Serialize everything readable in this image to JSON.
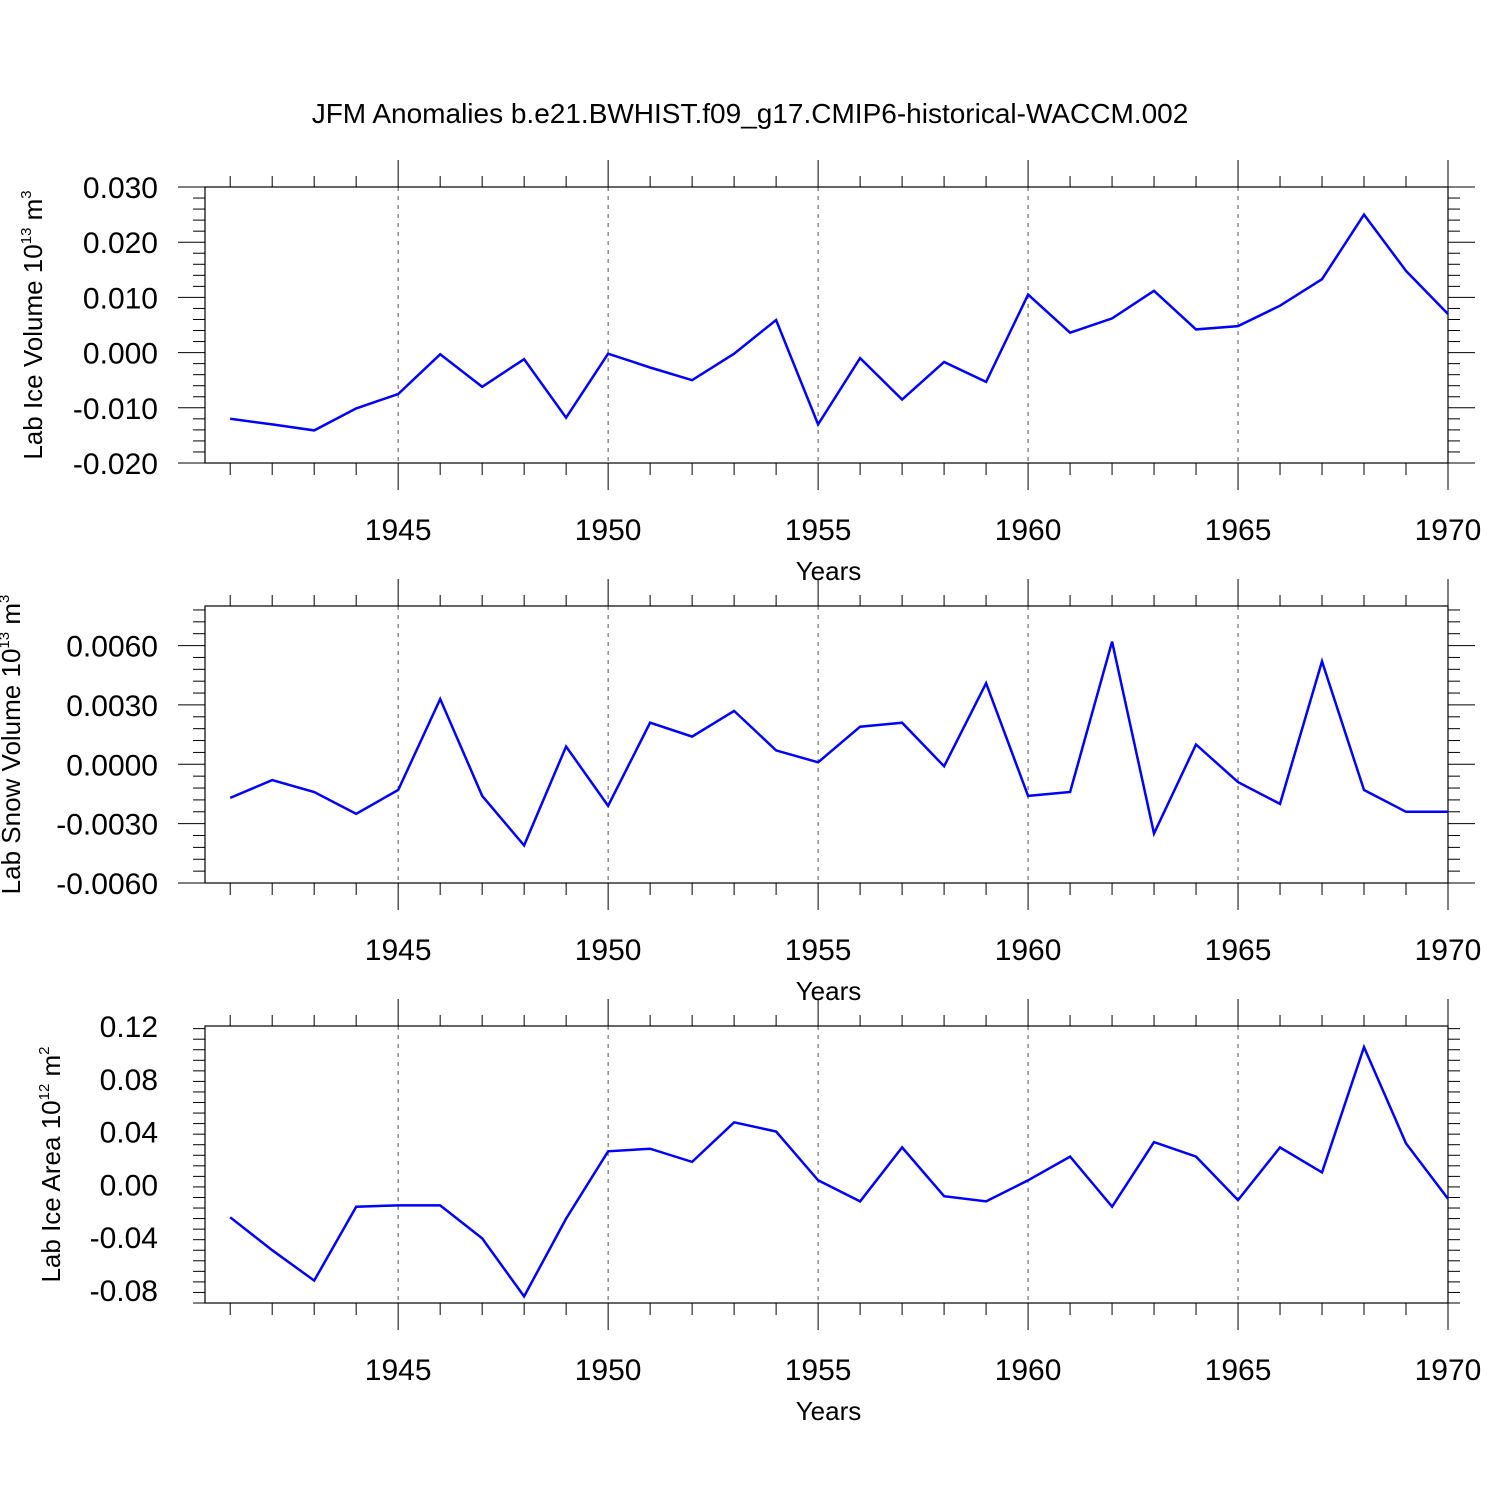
{
  "chart_data": [
    {
      "type": "line",
      "title": "JFM Anomalies b.e21.BWHIST.f09_g17.CMIP6-historical-WACCM.002",
      "ylabel": {
        "base": "Lab Ice Volume 10",
        "exp": "13",
        "unit": " m",
        "unit_exp": "3"
      },
      "xlabel": "Years",
      "x": [
        1941,
        1942,
        1943,
        1944,
        1945,
        1946,
        1947,
        1948,
        1949,
        1950,
        1951,
        1952,
        1953,
        1954,
        1955,
        1956,
        1957,
        1958,
        1959,
        1960,
        1961,
        1962,
        1963,
        1964,
        1965,
        1966,
        1967,
        1968,
        1969,
        1970
      ],
      "values": [
        -0.012,
        -0.013,
        -0.0141,
        -0.0101,
        -0.0075,
        -0.0003,
        -0.0062,
        -0.0012,
        -0.0118,
        -0.0002,
        -0.0027,
        -0.005,
        -0.0002,
        0.0059,
        -0.013,
        -0.001,
        -0.0085,
        -0.0017,
        -0.0053,
        0.0105,
        0.0036,
        0.0062,
        0.0112,
        0.0042,
        0.0048,
        0.0085,
        0.0133,
        0.025,
        0.0148,
        0.007
      ],
      "xlim": [
        1940.4,
        1970
      ],
      "ylim": [
        -0.02,
        0.03
      ],
      "yticks": [
        -0.02,
        -0.01,
        0.0,
        0.01,
        0.02,
        0.03
      ],
      "ytick_labels": [
        "-0.020",
        "-0.010",
        "0.000",
        "0.010",
        "0.020",
        "0.030"
      ],
      "xticks": [
        1945,
        1950,
        1955,
        1960,
        1965,
        1970
      ],
      "xtick_labels": [
        "1945",
        "1950",
        "1955",
        "1960",
        "1965",
        "1970"
      ],
      "line_color": "#0000ff"
    },
    {
      "type": "line",
      "ylabel": {
        "base": "Lab Snow Volume 10",
        "exp": "13",
        "unit": " m",
        "unit_exp": "3"
      },
      "xlabel": "Years",
      "x": [
        1941,
        1942,
        1943,
        1944,
        1945,
        1946,
        1947,
        1948,
        1949,
        1950,
        1951,
        1952,
        1953,
        1954,
        1955,
        1956,
        1957,
        1958,
        1959,
        1960,
        1961,
        1962,
        1963,
        1964,
        1965,
        1966,
        1967,
        1968,
        1969,
        1970
      ],
      "values": [
        -0.0017,
        -0.0008,
        -0.0014,
        -0.0025,
        -0.0013,
        0.0033,
        -0.0016,
        -0.0041,
        0.0009,
        -0.0021,
        0.0021,
        0.0014,
        0.0027,
        0.0007,
        0.0001,
        0.0019,
        0.0021,
        -0.0001,
        0.0041,
        -0.0016,
        -0.0014,
        0.0062,
        -0.0035,
        0.001,
        -0.0009,
        -0.002,
        0.0052,
        -0.0013,
        -0.0024,
        -0.0024
      ],
      "xlim": [
        1940.4,
        1970
      ],
      "ylim": [
        -0.006,
        0.008
      ],
      "yticks": [
        -0.006,
        -0.003,
        0.0,
        0.003,
        0.006
      ],
      "ytick_labels": [
        "-0.0060",
        "-0.0030",
        "0.0000",
        "0.0030",
        "0.0060"
      ],
      "xticks": [
        1945,
        1950,
        1955,
        1960,
        1965,
        1970
      ],
      "xtick_labels": [
        "1945",
        "1950",
        "1955",
        "1960",
        "1965",
        "1970"
      ],
      "line_color": "#0000ff"
    },
    {
      "type": "line",
      "ylabel": {
        "base": "Lab Ice Area 10",
        "exp": "12",
        "unit": " m",
        "unit_exp": "2"
      },
      "xlabel": "Years",
      "x": [
        1941,
        1942,
        1943,
        1944,
        1945,
        1946,
        1947,
        1948,
        1949,
        1950,
        1951,
        1952,
        1953,
        1954,
        1955,
        1956,
        1957,
        1958,
        1959,
        1960,
        1961,
        1962,
        1963,
        1964,
        1965,
        1966,
        1967,
        1968,
        1969,
        1970
      ],
      "values": [
        -0.025,
        -0.05,
        -0.073,
        -0.017,
        -0.016,
        -0.016,
        -0.041,
        -0.085,
        -0.026,
        0.025,
        0.027,
        0.017,
        0.047,
        0.04,
        0.003,
        -0.013,
        0.028,
        -0.009,
        -0.013,
        0.003,
        0.021,
        -0.017,
        0.032,
        0.021,
        -0.012,
        0.028,
        0.009,
        0.104,
        0.031,
        -0.011
      ],
      "xlim": [
        1940.4,
        1970
      ],
      "ylim": [
        -0.09,
        0.12
      ],
      "yticks": [
        -0.08,
        -0.04,
        0.0,
        0.04,
        0.08,
        0.12
      ],
      "ytick_labels": [
        "-0.08",
        "-0.04",
        "0.00",
        "0.04",
        "0.08",
        "0.12"
      ],
      "xticks": [
        1945,
        1950,
        1955,
        1960,
        1965,
        1970
      ],
      "xtick_labels": [
        "1945",
        "1950",
        "1955",
        "1960",
        "1965",
        "1970"
      ],
      "line_color": "#0000ff"
    }
  ]
}
